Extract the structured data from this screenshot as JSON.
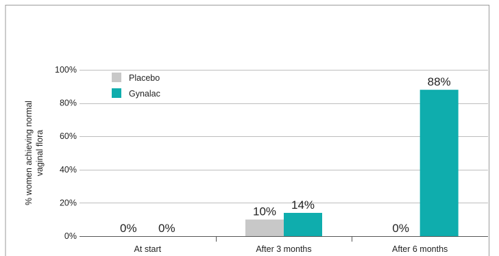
{
  "chart_data": {
    "type": "bar",
    "categories": [
      "At start",
      "After 3 months",
      "After 6 months"
    ],
    "series": [
      {
        "name": "Placebo",
        "values": [
          0,
          10,
          0
        ],
        "data_labels": [
          "0%",
          "10%",
          "0%"
        ],
        "color": "#c8c8c8"
      },
      {
        "name": "Gynalac",
        "values": [
          0,
          14,
          88
        ],
        "data_labels": [
          "0%",
          "14%",
          "88%"
        ],
        "color": "#0fadad"
      }
    ],
    "title": "",
    "xlabel": "",
    "ylabel": [
      "% women achieving normal",
      "vaginal flora"
    ],
    "ylim": [
      0,
      100
    ],
    "yticks": [
      0,
      20,
      40,
      60,
      80,
      100
    ],
    "ytick_labels": [
      "0%",
      "20%",
      "40%",
      "60%",
      "80%",
      "100%"
    ],
    "grid": true,
    "legend": {
      "placement": "top-left"
    },
    "colors": {
      "grid": "#bdbdbd",
      "axis": "#555555",
      "frame": "#9a9a9a"
    }
  }
}
